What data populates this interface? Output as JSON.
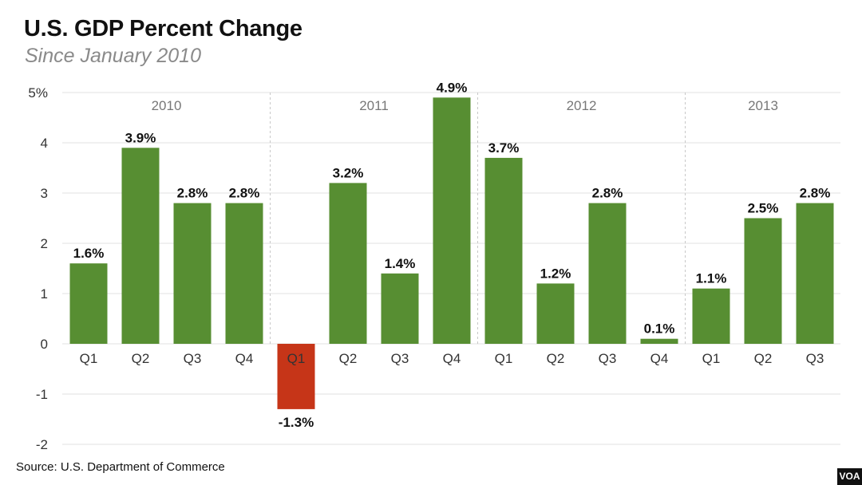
{
  "chart_data": {
    "type": "bar",
    "title": "U.S. GDP Percent Change",
    "subtitle": "Since January 2010",
    "source": "Source: U.S. Department of Commerce",
    "ylim": [
      -2,
      5
    ],
    "yticks": [
      {
        "value": 5,
        "label": "5%"
      },
      {
        "value": 4,
        "label": "4"
      },
      {
        "value": 3,
        "label": "3"
      },
      {
        "value": 2,
        "label": "2"
      },
      {
        "value": 1,
        "label": "1"
      },
      {
        "value": 0,
        "label": "0"
      },
      {
        "value": -1,
        "label": "-1"
      },
      {
        "value": -2,
        "label": "-2"
      }
    ],
    "grid": true,
    "years": [
      {
        "label": "2010",
        "start": 0,
        "count": 4
      },
      {
        "label": "2011",
        "start": 4,
        "count": 4
      },
      {
        "label": "2012",
        "start": 8,
        "count": 4
      },
      {
        "label": "2013",
        "start": 12,
        "count": 3
      }
    ],
    "categories": [
      "Q1",
      "Q2",
      "Q3",
      "Q4",
      "Q1",
      "Q2",
      "Q3",
      "Q4",
      "Q1",
      "Q2",
      "Q3",
      "Q4",
      "Q1",
      "Q2",
      "Q3"
    ],
    "values": [
      1.6,
      3.9,
      2.8,
      2.8,
      -1.3,
      3.2,
      1.4,
      4.9,
      3.7,
      1.2,
      2.8,
      0.1,
      1.1,
      2.5,
      2.8
    ],
    "data_labels": [
      "1.6%",
      "3.9%",
      "2.8%",
      "2.8%",
      "-1.3%",
      "3.2%",
      "1.4%",
      "4.9%",
      "3.7%",
      "1.2%",
      "2.8%",
      "0.1%",
      "1.1%",
      "2.5%",
      "2.8%"
    ],
    "colors": {
      "positive": "#578e32",
      "negative": "#c63518",
      "grid": "#e2e2e2",
      "year_divider": "#c8c8c8"
    }
  },
  "logo": {
    "text": "VOA"
  }
}
